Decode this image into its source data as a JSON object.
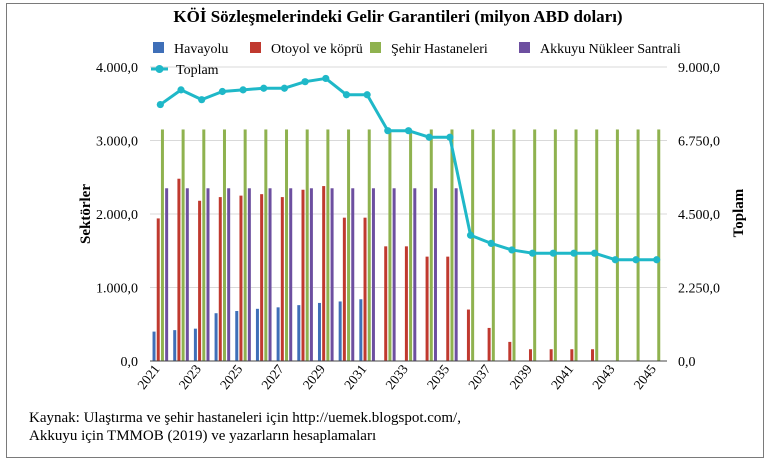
{
  "source_note": {
    "line1": "Kaynak: Ulaştırma ve şehir hastaneleri için http://uemek.blogspot.com/,",
    "line2": "Akkuyu için TMMOB (2019) ve yazarların hesaplamaları"
  },
  "colors": {
    "havayolu": "#3f6fb8",
    "otoyol": "#c0392f",
    "sehir": "#8fb24f",
    "akkuyu": "#6d4fa0",
    "toplam": "#1fb8c8",
    "grid": "#d9d9d9"
  },
  "chart_data": {
    "type": "bar",
    "title": "KÖİ Sözleşmelerindeki Gelir Garantileri (milyon ABD doları)",
    "ylabel": "Sektörler",
    "y2label": "Toplam",
    "ylim": [
      0,
      4000
    ],
    "y2lim": [
      0,
      9000
    ],
    "yticks": [
      "0,0",
      "1.000,0",
      "2.000,0",
      "3.000,0",
      "4.000,0"
    ],
    "y2ticks": [
      "0,0",
      "2.250,0",
      "4.500,0",
      "6.750,0",
      "9.000,0"
    ],
    "categories": [
      2021,
      2022,
      2023,
      2024,
      2025,
      2026,
      2027,
      2028,
      2029,
      2030,
      2031,
      2032,
      2033,
      2034,
      2035,
      2036,
      2037,
      2038,
      2039,
      2040,
      2041,
      2042,
      2043,
      2044,
      2045
    ],
    "xtick_labels": [
      "2021",
      "2023",
      "2025",
      "2027",
      "2029",
      "2031",
      "2033",
      "2035",
      "2037",
      "2039",
      "2041",
      "2043",
      "2045"
    ],
    "series": [
      {
        "name": "Havayolu",
        "key": "havayolu",
        "axis": "left",
        "kind": "bar",
        "values": [
          400,
          420,
          440,
          650,
          680,
          710,
          730,
          760,
          790,
          810,
          840,
          0,
          0,
          0,
          0,
          0,
          0,
          0,
          0,
          0,
          0,
          0,
          0,
          0,
          0
        ]
      },
      {
        "name": "Otoyol ve köprü",
        "key": "otoyol",
        "axis": "left",
        "kind": "bar",
        "values": [
          1940,
          2480,
          2180,
          2230,
          2250,
          2270,
          2230,
          2330,
          2380,
          1950,
          1950,
          1560,
          1560,
          1420,
          1420,
          700,
          450,
          260,
          160,
          160,
          160,
          160,
          0,
          0,
          0
        ]
      },
      {
        "name": "Şehir Hastaneleri",
        "key": "sehir",
        "axis": "left",
        "kind": "bar",
        "values": [
          3150,
          3150,
          3150,
          3150,
          3150,
          3150,
          3150,
          3150,
          3150,
          3150,
          3150,
          3150,
          3150,
          3150,
          3150,
          3150,
          3150,
          3150,
          3150,
          3150,
          3150,
          3150,
          3150,
          3150,
          3150
        ]
      },
      {
        "name": "Akkuyu Nükleer Santrali",
        "key": "akkuyu",
        "axis": "left",
        "kind": "bar",
        "values": [
          2350,
          2350,
          2350,
          2350,
          2350,
          2350,
          2350,
          2350,
          2350,
          2350,
          2350,
          2350,
          2350,
          2350,
          2350,
          0,
          0,
          0,
          0,
          0,
          0,
          0,
          0,
          0,
          0
        ]
      },
      {
        "name": "Toplam",
        "key": "toplam",
        "axis": "right",
        "kind": "line",
        "values": [
          7850,
          8300,
          8000,
          8250,
          8300,
          8350,
          8350,
          8550,
          8650,
          8150,
          8150,
          7050,
          7050,
          6850,
          6850,
          3850,
          3600,
          3400,
          3300,
          3300,
          3300,
          3300,
          3100,
          3100,
          3100
        ]
      }
    ],
    "legend": {
      "row1": [
        "Havayolu",
        "Otoyol ve köprü",
        "Şehir Hastaneleri",
        "Akkuyu Nükleer Santrali"
      ],
      "row2": [
        "Toplam"
      ],
      "position": "top"
    }
  }
}
